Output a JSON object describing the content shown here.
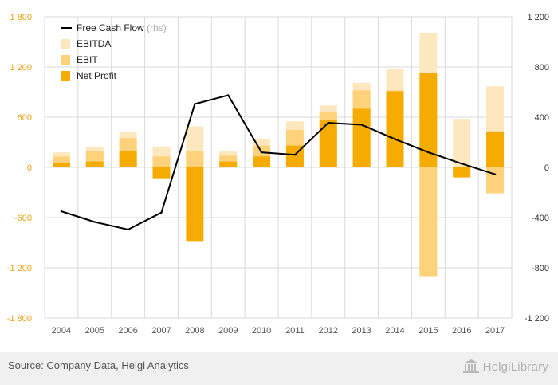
{
  "chart_data": {
    "type": "bar",
    "categories": [
      "2004",
      "2005",
      "2006",
      "2007",
      "2008",
      "2009",
      "2010",
      "2011",
      "2012",
      "2013",
      "2014",
      "2015",
      "2016",
      "2017"
    ],
    "series": [
      {
        "name": "EBITDA",
        "type": "bar",
        "axis": "left",
        "color": "#fde7bf",
        "values": [
          180,
          250,
          420,
          240,
          490,
          190,
          340,
          550,
          740,
          1010,
          1180,
          1600,
          580,
          970
        ]
      },
      {
        "name": "EBIT",
        "type": "bar",
        "axis": "left",
        "color": "#fdd27a",
        "values": [
          130,
          190,
          350,
          130,
          200,
          140,
          260,
          450,
          660,
          920,
          920,
          -1300,
          -110,
          -310
        ]
      },
      {
        "name": "Net Profit",
        "type": "bar",
        "axis": "left",
        "color": "#f6ab00",
        "values": [
          50,
          70,
          190,
          -130,
          -880,
          70,
          130,
          260,
          570,
          700,
          910,
          1130,
          -120,
          430
        ]
      },
      {
        "name": "Free Cash Flow",
        "suffix": "(rhs)",
        "type": "line",
        "axis": "right",
        "color": "#000000",
        "values": [
          -350,
          -435,
          -495,
          -360,
          505,
          575,
          120,
          100,
          355,
          340,
          225,
          120,
          30,
          -55
        ]
      }
    ],
    "y_left": {
      "ylim": [
        -1800,
        1800
      ],
      "ticks": [
        1800,
        1200,
        600,
        0,
        -600,
        -1200,
        -1800
      ],
      "tick_labels": [
        "1 800",
        "1 200",
        "600",
        "0",
        "-600",
        "-1 200",
        "-1 800"
      ]
    },
    "y_right": {
      "ylim": [
        -1200,
        1200
      ],
      "ticks": [
        1200,
        800,
        400,
        0,
        -400,
        -800,
        -1200
      ],
      "tick_labels": [
        "1 200",
        "800",
        "400",
        "0",
        "-400",
        "-800",
        "-1 200"
      ]
    },
    "legend_position": "top-left",
    "grid": true
  },
  "footer": {
    "source": "Source: Company Data, Helgi Analytics",
    "logo_text": "HelgiLibrary"
  },
  "colors": {
    "left_axis_labels": "#e8a317",
    "right_axis_labels": "#333333",
    "grid": "#d9d9d9",
    "x_labels": "#555555"
  }
}
